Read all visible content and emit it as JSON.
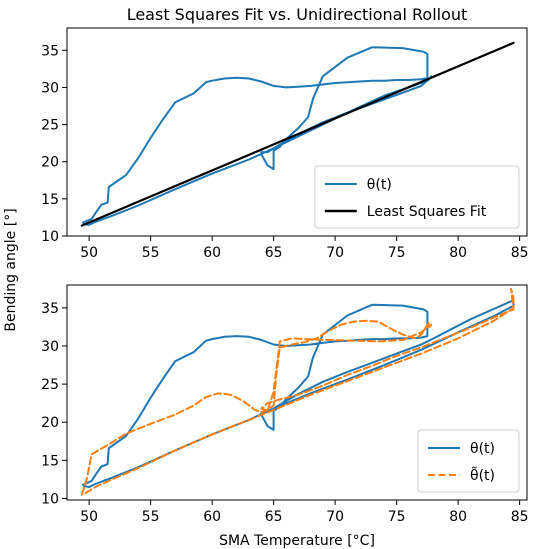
{
  "figure": {
    "ylabel": "Bending angle [°]",
    "xlabel": "SMA Temperature [°C]"
  },
  "chart_data": [
    {
      "type": "line",
      "title": "Least Squares Fit vs. Unidirectional Rollout",
      "xlabel": "",
      "ylabel": "",
      "xlim": [
        48.2,
        85.6
      ],
      "ylim": [
        10.0,
        38.0
      ],
      "xticks": [
        "50",
        "55",
        "60",
        "65",
        "70",
        "75",
        "80",
        "85"
      ],
      "yticks": [
        "10",
        "15",
        "20",
        "25",
        "30",
        "35"
      ],
      "grid": false,
      "legend_position": "lower-right",
      "series": [
        {
          "name": "θ(t)",
          "color": "#1f77b4",
          "dash": "solid",
          "x": [
            49.5,
            50.2,
            50.6,
            51.0,
            51.5,
            51.6,
            53.0,
            54.0,
            55.0,
            56.0,
            57.0,
            58.5,
            59.5,
            60.0,
            61.0,
            62.0,
            63.0,
            64.0,
            65.0,
            66.0,
            67.0,
            68.0,
            69.0,
            70.0,
            71.0,
            72.0,
            73.0,
            74.0,
            75.0,
            76.0,
            77.0,
            77.5,
            77.5,
            77.2,
            75.5,
            73.0,
            71.0,
            69.0,
            68.2,
            67.8,
            67.0,
            66.0,
            65.5,
            65.0,
            65.0,
            64.5,
            64.0,
            64.0,
            64.5,
            65.5,
            67.0,
            69.0,
            71.0,
            73.0,
            75.0,
            77.0,
            77.7,
            77.8,
            77.6,
            76.5,
            74.0,
            71.0,
            68.0,
            65.0,
            63.0,
            60.0,
            57.0,
            54.0,
            52.0,
            50.5,
            50.0,
            49.6
          ],
          "y": [
            11.8,
            12.3,
            13.3,
            14.2,
            14.5,
            16.6,
            18.2,
            20.5,
            23.2,
            25.7,
            28.0,
            29.2,
            30.7,
            30.9,
            31.2,
            31.3,
            31.2,
            30.8,
            30.2,
            30.0,
            30.1,
            30.2,
            30.4,
            30.6,
            30.7,
            30.8,
            30.9,
            30.9,
            31.0,
            31.0,
            31.1,
            31.3,
            34.5,
            34.8,
            35.3,
            35.4,
            34.0,
            31.5,
            28.5,
            26.0,
            24.5,
            23.0,
            22.0,
            21.5,
            19.0,
            19.5,
            21.0,
            21.3,
            21.3,
            22.3,
            23.7,
            25.3,
            26.6,
            27.8,
            29.0,
            30.2,
            31.2,
            31.5,
            31.0,
            30.3,
            28.9,
            26.6,
            24.2,
            21.8,
            20.3,
            18.4,
            16.3,
            14.1,
            12.8,
            11.9,
            11.5,
            11.6
          ]
        },
        {
          "name": "Least Squares Fit",
          "color": "#000000",
          "dash": "solid",
          "x": [
            49.4,
            84.5
          ],
          "y": [
            11.4,
            36.0
          ]
        }
      ]
    },
    {
      "type": "line",
      "title": "",
      "xlabel": "SMA Temperature [°C]",
      "ylabel": "",
      "xlim": [
        48.2,
        85.6
      ],
      "ylim": [
        9.8,
        38.0
      ],
      "xticks": [
        "50",
        "55",
        "60",
        "65",
        "70",
        "75",
        "80",
        "85"
      ],
      "yticks": [
        "10",
        "15",
        "20",
        "25",
        "30",
        "35"
      ],
      "grid": false,
      "legend_position": "lower-right",
      "series": [
        {
          "name": "θ(t)",
          "color": "#1f77b4",
          "dash": "solid",
          "x": [
            49.5,
            50.2,
            50.6,
            51.0,
            51.5,
            51.6,
            53.0,
            54.0,
            55.0,
            56.0,
            57.0,
            58.5,
            59.5,
            60.0,
            61.0,
            62.0,
            63.0,
            64.0,
            65.0,
            66.0,
            67.0,
            68.0,
            69.0,
            70.0,
            71.0,
            72.0,
            73.0,
            74.0,
            75.0,
            76.0,
            77.0,
            77.5,
            77.5,
            77.2,
            75.5,
            73.0,
            71.0,
            69.0,
            68.2,
            67.8,
            67.0,
            66.0,
            65.5,
            65.0,
            65.0,
            64.5,
            64.0,
            64.0,
            64.5,
            65.5,
            67.0,
            69.0,
            71.0,
            73.0,
            75.0,
            77.0,
            78.0,
            81.0,
            84.5,
            84.5,
            83.0,
            80.0,
            77.0,
            74.0,
            71.0,
            68.0,
            65.0,
            63.0,
            60.0,
            57.0,
            54.0,
            52.0,
            50.5,
            50.0,
            49.6
          ],
          "y": [
            11.8,
            12.3,
            13.3,
            14.2,
            14.5,
            16.6,
            18.2,
            20.5,
            23.2,
            25.7,
            28.0,
            29.2,
            30.7,
            30.9,
            31.2,
            31.3,
            31.2,
            30.8,
            30.2,
            30.0,
            30.1,
            30.2,
            30.4,
            30.6,
            30.7,
            30.8,
            30.9,
            30.9,
            31.0,
            31.0,
            31.1,
            31.3,
            34.5,
            34.8,
            35.3,
            35.4,
            34.0,
            31.5,
            28.5,
            26.0,
            24.5,
            23.0,
            22.0,
            21.5,
            19.0,
            19.5,
            21.0,
            21.3,
            21.3,
            22.3,
            23.7,
            25.3,
            26.6,
            27.8,
            29.0,
            30.2,
            31.0,
            33.5,
            36.0,
            35.3,
            34.0,
            31.8,
            29.5,
            27.5,
            25.6,
            23.8,
            21.8,
            20.3,
            18.4,
            16.3,
            14.1,
            12.8,
            11.9,
            11.5,
            11.6
          ]
        },
        {
          "name": "θ̃(t)",
          "color": "#ff7f0e",
          "dash": "dashed",
          "x": [
            49.4,
            49.8,
            50.2,
            51.5,
            53.0,
            55.0,
            57.0,
            58.5,
            59.5,
            60.5,
            61.5,
            62.5,
            63.5,
            64.0,
            64.5,
            65.0,
            65.2,
            65.5,
            66.5,
            67.5,
            68.5,
            69.5,
            70.5,
            71.5,
            72.5,
            73.5,
            74.5,
            75.5,
            76.5,
            77.0,
            77.6,
            77.7,
            77.8,
            77.0,
            75.5,
            73.5,
            71.5,
            69.5,
            67.5,
            66.5,
            65.5,
            65.0,
            64.5,
            64.0,
            64.5,
            65.5,
            67.0,
            69.0,
            71.0,
            73.0,
            75.0,
            77.0,
            79.0,
            81.0,
            83.0,
            84.5,
            84.5,
            84.3,
            84.5,
            83.0,
            80.0,
            77.0,
            74.0,
            71.0,
            68.0,
            65.0,
            63.0,
            60.0,
            57.0,
            54.0,
            52.0,
            50.5,
            49.8,
            49.5
          ],
          "y": [
            10.5,
            12.5,
            15.8,
            17.0,
            18.5,
            19.8,
            21.0,
            22.2,
            23.3,
            23.8,
            23.6,
            22.8,
            21.6,
            21.3,
            21.6,
            22.2,
            26.0,
            29.8,
            30.2,
            30.5,
            31.0,
            32.0,
            32.8,
            33.2,
            33.3,
            33.2,
            32.3,
            31.5,
            31.0,
            31.5,
            33.0,
            32.5,
            32.8,
            31.8,
            30.8,
            30.6,
            30.7,
            30.8,
            30.9,
            31.0,
            30.6,
            24.0,
            21.5,
            21.8,
            22.5,
            23.0,
            23.6,
            24.8,
            26.2,
            27.4,
            28.7,
            29.8,
            31.1,
            32.4,
            33.8,
            34.8,
            36.3,
            37.5,
            35.0,
            33.4,
            31.0,
            29.0,
            27.2,
            25.4,
            23.6,
            21.6,
            20.3,
            18.4,
            16.3,
            14.0,
            12.6,
            11.5,
            10.8,
            10.5
          ]
        }
      ]
    }
  ]
}
